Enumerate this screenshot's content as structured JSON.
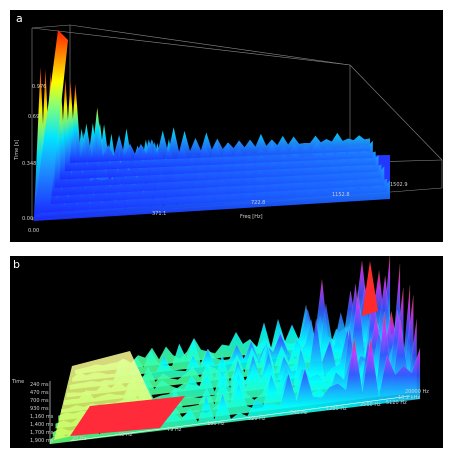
{
  "chart_data": [
    {
      "type": "area",
      "panel_label": "a",
      "xlabel": "Freq [Hz]",
      "ylabel": "Time [s]",
      "x_ticks": [
        "0.00",
        "371.1",
        "722.8",
        "1152.8",
        "1502.9"
      ],
      "y_ticks": [
        "0.00",
        "0.348",
        "0.697",
        "0.976"
      ],
      "colormap": [
        "#1a2cff",
        "#1e90ff",
        "#00e5ff",
        "#7cff7c",
        "#ffff00",
        "#ff8c00",
        "#ff2000"
      ]
    },
    {
      "type": "area",
      "panel_label": "b",
      "x_ticks": [
        "20 Hz",
        "40 Hz",
        "79 Hz",
        "160 Hz",
        "320 Hz",
        "640 Hz",
        "1280 Hz",
        "2560 Hz",
        "5120 Hz",
        "10.2 kHz",
        "20000 Hz"
      ],
      "y_axis_title": "Time",
      "y_ticks": [
        "240 ms",
        "470 ms",
        "700 ms",
        "930 ms",
        "1,160 ms",
        "1,400 ms",
        "1,700 ms",
        "1,900 ms"
      ],
      "colormap": [
        "#ff1a1a",
        "#ffff66",
        "#66ff66",
        "#00ffff",
        "#3355ff",
        "#cc33ff",
        "#ff2a2a"
      ]
    }
  ]
}
